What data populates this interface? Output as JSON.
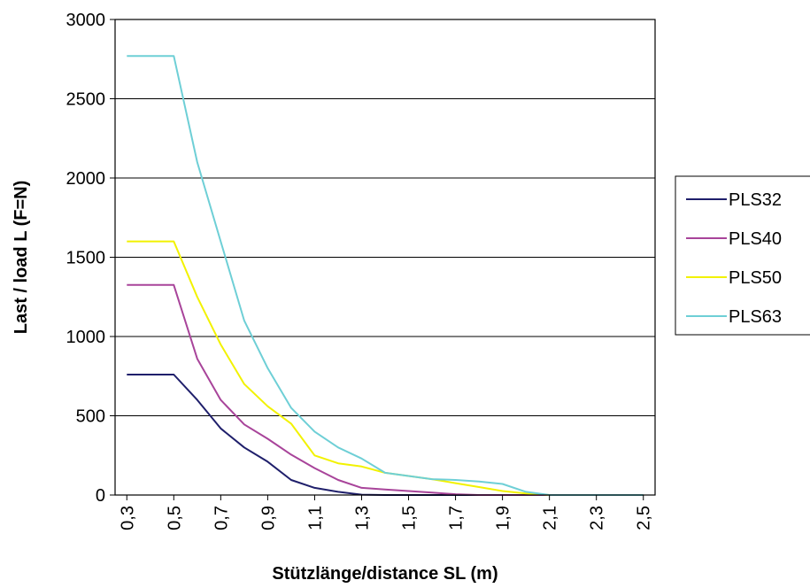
{
  "chart_data": {
    "type": "line",
    "title": "",
    "xlabel": "Stützlänge/distance SL (m)",
    "ylabel": "Last / load L (F=N)",
    "x": [
      0.3,
      0.4,
      0.5,
      0.6,
      0.7,
      0.8,
      0.9,
      1.0,
      1.1,
      1.2,
      1.3,
      1.4,
      1.5,
      1.6,
      1.7,
      1.8,
      1.9,
      2.0,
      2.1,
      2.2,
      2.3,
      2.4,
      2.5
    ],
    "x_ticks": [
      "0,3",
      "0,5",
      "0,7",
      "0,9",
      "1,1",
      "1,3",
      "1,5",
      "1,7",
      "1,9",
      "2,1",
      "2,3",
      "2,5"
    ],
    "y_ticks": [
      "0",
      "500",
      "1000",
      "1500",
      "2000",
      "2500",
      "3000"
    ],
    "ylim": [
      0,
      3000
    ],
    "grid": "horizontal",
    "legend_position": "right",
    "series": [
      {
        "name": "PLS32",
        "color": "#1f1f6b",
        "values": [
          760,
          760,
          760,
          600,
          420,
          300,
          210,
          95,
          45,
          20,
          2,
          0,
          0,
          0,
          0,
          0,
          0,
          0,
          0,
          0,
          0,
          0,
          0
        ]
      },
      {
        "name": "PLS40",
        "color": "#a8449a",
        "values": [
          1325,
          1325,
          1325,
          860,
          600,
          445,
          355,
          255,
          170,
          95,
          45,
          35,
          25,
          15,
          5,
          0,
          0,
          0,
          0,
          0,
          0,
          0,
          0
        ]
      },
      {
        "name": "PLS50",
        "color": "#f2f200",
        "values": [
          1600,
          1600,
          1600,
          1250,
          950,
          700,
          560,
          450,
          250,
          200,
          180,
          140,
          120,
          100,
          75,
          50,
          25,
          10,
          0,
          0,
          0,
          0,
          0
        ]
      },
      {
        "name": "PLS63",
        "color": "#6ecfd6",
        "values": [
          2770,
          2770,
          2770,
          2100,
          1600,
          1100,
          800,
          550,
          400,
          300,
          230,
          140,
          120,
          100,
          95,
          85,
          70,
          20,
          0,
          0,
          0,
          0,
          0
        ]
      }
    ]
  }
}
